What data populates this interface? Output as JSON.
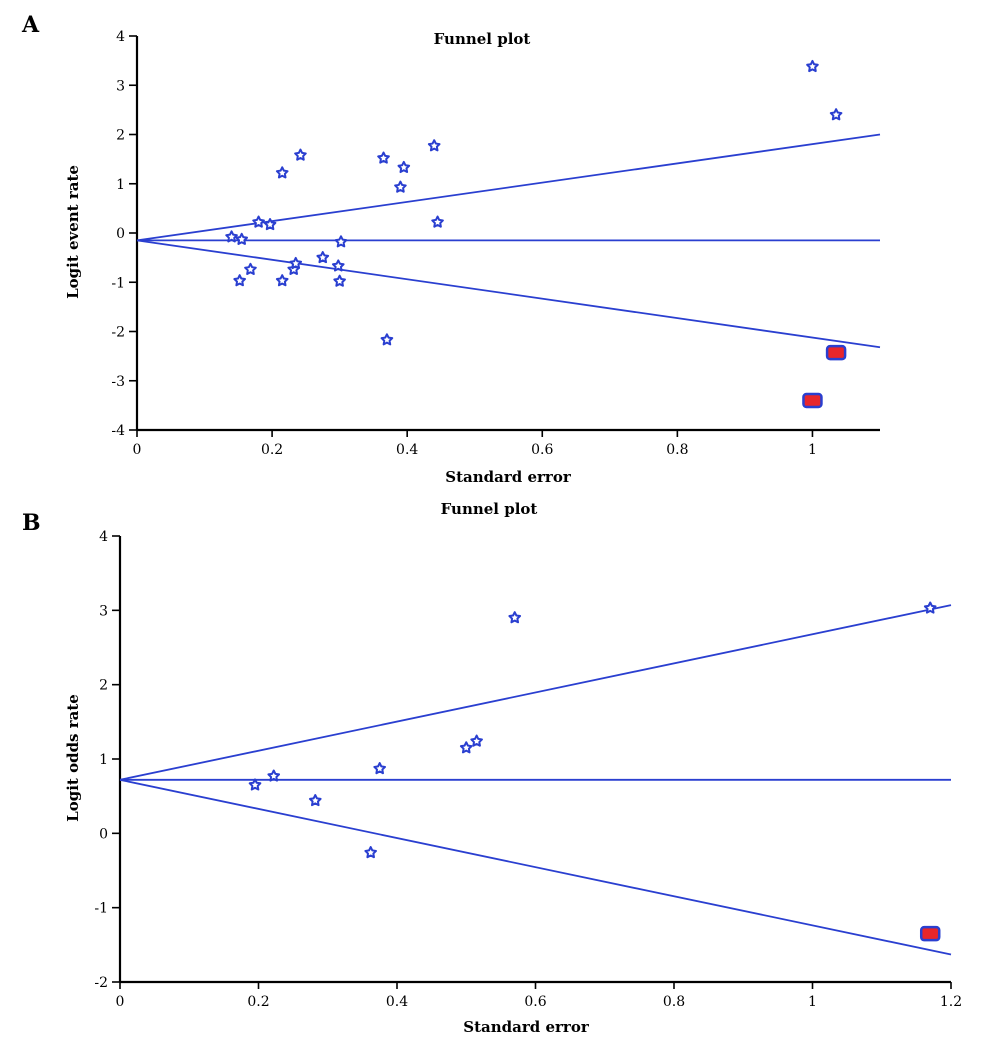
{
  "colors": {
    "line": "#2a3fd0",
    "star": "#2a3fd0",
    "imputed_fill": "#e8262b",
    "imputed_stroke": "#2a3fd0",
    "axis": "#000000"
  },
  "chart_data": [
    {
      "type": "scatter",
      "panel": "A",
      "title": "Funnel plot",
      "xlabel": "Standard error",
      "ylabel": "Logit event rate",
      "xlim": [
        0,
        1.1
      ],
      "ylim": [
        -4,
        4
      ],
      "xticks": [
        0,
        0.2,
        0.4,
        0.6,
        0.8,
        1
      ],
      "xtick_labels": [
        "0",
        "0.2",
        "0.4",
        "0.6",
        "0.8",
        "1"
      ],
      "yticks": [
        -4,
        -3,
        -2,
        -1,
        0,
        1,
        2,
        3,
        4
      ],
      "ytick_labels": [
        "-4",
        "-3",
        "-2",
        "-1",
        "0",
        "1",
        "2",
        "3",
        "4"
      ],
      "grid": false,
      "funnel": {
        "center": -0.15,
        "upper_at_xmax": 2.0,
        "lower_at_xmax": -2.32
      },
      "studies": [
        {
          "x": 0.14,
          "y": -0.08
        },
        {
          "x": 0.155,
          "y": -0.13
        },
        {
          "x": 0.152,
          "y": -0.97
        },
        {
          "x": 0.168,
          "y": -0.74
        },
        {
          "x": 0.18,
          "y": 0.22
        },
        {
          "x": 0.197,
          "y": 0.17
        },
        {
          "x": 0.215,
          "y": 1.22
        },
        {
          "x": 0.215,
          "y": -0.97
        },
        {
          "x": 0.232,
          "y": -0.74
        },
        {
          "x": 0.235,
          "y": -0.62
        },
        {
          "x": 0.242,
          "y": 1.58
        },
        {
          "x": 0.275,
          "y": -0.5
        },
        {
          "x": 0.298,
          "y": -0.67
        },
        {
          "x": 0.3,
          "y": -0.98
        },
        {
          "x": 0.302,
          "y": -0.18
        },
        {
          "x": 0.365,
          "y": 1.52
        },
        {
          "x": 0.37,
          "y": -2.17
        },
        {
          "x": 0.39,
          "y": 0.93
        },
        {
          "x": 0.395,
          "y": 1.33
        },
        {
          "x": 0.44,
          "y": 1.77
        },
        {
          "x": 0.445,
          "y": 0.22
        },
        {
          "x": 1.0,
          "y": 3.38
        },
        {
          "x": 1.035,
          "y": 2.4
        }
      ],
      "imputed": [
        {
          "x": 1.0,
          "y": -3.4
        },
        {
          "x": 1.035,
          "y": -2.43
        }
      ]
    },
    {
      "type": "scatter",
      "panel": "B",
      "title": "Funnel plot",
      "xlabel": "Standard error",
      "ylabel": "Logit odds rate",
      "xlim": [
        0,
        1.2
      ],
      "ylim": [
        -2,
        4
      ],
      "xticks": [
        0,
        0.2,
        0.4,
        0.6,
        0.8,
        1,
        1.2
      ],
      "xtick_labels": [
        "0",
        "0.2",
        "0.4",
        "0.6",
        "0.8",
        "1",
        "1.2"
      ],
      "yticks": [
        -2,
        -1,
        0,
        1,
        2,
        3,
        4
      ],
      "ytick_labels": [
        "-2",
        "-1",
        "0",
        "1",
        "2",
        "3",
        "4"
      ],
      "grid": false,
      "funnel": {
        "center": 0.72,
        "upper_at_xmax": 3.07,
        "lower_at_xmax": -1.63
      },
      "studies": [
        {
          "x": 0.195,
          "y": 0.65
        },
        {
          "x": 0.222,
          "y": 0.77
        },
        {
          "x": 0.282,
          "y": 0.44
        },
        {
          "x": 0.362,
          "y": -0.26
        },
        {
          "x": 0.375,
          "y": 0.87
        },
        {
          "x": 0.5,
          "y": 1.15
        },
        {
          "x": 0.515,
          "y": 1.24
        },
        {
          "x": 0.57,
          "y": 2.9
        },
        {
          "x": 1.17,
          "y": 3.03
        }
      ],
      "imputed": [
        {
          "x": 1.17,
          "y": -1.35
        }
      ]
    }
  ]
}
